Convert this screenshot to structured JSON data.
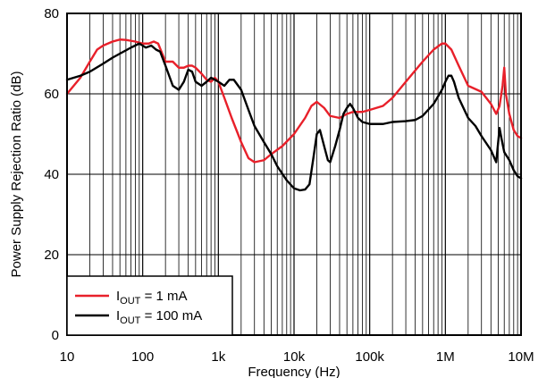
{
  "chart_data": {
    "type": "line",
    "xlabel": "Frequency (Hz)",
    "ylabel": "Power Supply Rejection Ratio (dB)",
    "x_scale": "log",
    "xlim": [
      10,
      10000000
    ],
    "ylim": [
      0,
      80
    ],
    "x_ticks": [
      {
        "value": 10,
        "label": "10"
      },
      {
        "value": 100,
        "label": "100"
      },
      {
        "value": 1000,
        "label": "1k"
      },
      {
        "value": 10000,
        "label": "10k"
      },
      {
        "value": 100000,
        "label": "100k"
      },
      {
        "value": 1000000,
        "label": "1M"
      },
      {
        "value": 10000000,
        "label": "10M"
      }
    ],
    "y_ticks": [
      {
        "value": 0,
        "label": "0"
      },
      {
        "value": 20,
        "label": "20"
      },
      {
        "value": 40,
        "label": "40"
      },
      {
        "value": 60,
        "label": "60"
      },
      {
        "value": 80,
        "label": "80"
      }
    ],
    "grid": true,
    "legend_position": "bottom-left",
    "series": [
      {
        "name_main": "I",
        "name_sub": "OUT",
        "name_rest": " = 1 mA",
        "color": "#e8202a",
        "points": [
          [
            10,
            60
          ],
          [
            15,
            64
          ],
          [
            20,
            68
          ],
          [
            25,
            71
          ],
          [
            30,
            72
          ],
          [
            40,
            73
          ],
          [
            50,
            73.5
          ],
          [
            60,
            73.4
          ],
          [
            80,
            73
          ],
          [
            100,
            72.5
          ],
          [
            120,
            72.5
          ],
          [
            140,
            73
          ],
          [
            160,
            72.5
          ],
          [
            200,
            68
          ],
          [
            250,
            68
          ],
          [
            300,
            66.5
          ],
          [
            350,
            66.5
          ],
          [
            400,
            67
          ],
          [
            450,
            67
          ],
          [
            500,
            66.5
          ],
          [
            600,
            65
          ],
          [
            700,
            63.5
          ],
          [
            800,
            63
          ],
          [
            900,
            64
          ],
          [
            1000,
            63
          ],
          [
            1200,
            59
          ],
          [
            1500,
            54
          ],
          [
            2000,
            48
          ],
          [
            2500,
            44
          ],
          [
            3000,
            43
          ],
          [
            4000,
            43.5
          ],
          [
            5000,
            45
          ],
          [
            7000,
            47
          ],
          [
            10000,
            50
          ],
          [
            14000,
            54
          ],
          [
            17000,
            57
          ],
          [
            20000,
            58
          ],
          [
            25000,
            56.5
          ],
          [
            30000,
            54.5
          ],
          [
            40000,
            54
          ],
          [
            50000,
            55
          ],
          [
            60000,
            55.5
          ],
          [
            80000,
            55.5
          ],
          [
            100000,
            56
          ],
          [
            150000,
            57
          ],
          [
            200000,
            59
          ],
          [
            300000,
            63
          ],
          [
            500000,
            68
          ],
          [
            700000,
            71
          ],
          [
            900000,
            72.5
          ],
          [
            1000000,
            72.5
          ],
          [
            1200000,
            71
          ],
          [
            1500000,
            67
          ],
          [
            2000000,
            62
          ],
          [
            3000000,
            60.5
          ],
          [
            4000000,
            57.5
          ],
          [
            4700000,
            55
          ],
          [
            5200000,
            57
          ],
          [
            5700000,
            62
          ],
          [
            6000000,
            66.5
          ],
          [
            6300000,
            60
          ],
          [
            7000000,
            55
          ],
          [
            8000000,
            51
          ],
          [
            9000000,
            49.5
          ],
          [
            10000000,
            49
          ]
        ]
      },
      {
        "name_main": "I",
        "name_sub": "OUT",
        "name_rest": " = 100 mA",
        "color": "#000000",
        "points": [
          [
            10,
            63.5
          ],
          [
            15,
            64.5
          ],
          [
            20,
            65.5
          ],
          [
            30,
            67.5
          ],
          [
            40,
            69
          ],
          [
            50,
            70
          ],
          [
            70,
            71.5
          ],
          [
            90,
            72.5
          ],
          [
            100,
            72
          ],
          [
            110,
            71.5
          ],
          [
            130,
            72
          ],
          [
            150,
            71
          ],
          [
            170,
            70.5
          ],
          [
            200,
            67
          ],
          [
            250,
            62
          ],
          [
            300,
            61
          ],
          [
            350,
            63
          ],
          [
            400,
            66
          ],
          [
            450,
            65.5
          ],
          [
            500,
            63
          ],
          [
            600,
            62
          ],
          [
            700,
            63
          ],
          [
            800,
            64
          ],
          [
            900,
            63.5
          ],
          [
            1000,
            63
          ],
          [
            1200,
            62
          ],
          [
            1400,
            63.5
          ],
          [
            1600,
            63.5
          ],
          [
            2000,
            61
          ],
          [
            2500,
            56
          ],
          [
            3000,
            52
          ],
          [
            4000,
            48
          ],
          [
            5000,
            45
          ],
          [
            6000,
            42
          ],
          [
            8000,
            38.5
          ],
          [
            10000,
            36.5
          ],
          [
            12000,
            36
          ],
          [
            14000,
            36.2
          ],
          [
            16000,
            37.5
          ],
          [
            18000,
            44
          ],
          [
            20000,
            50
          ],
          [
            22000,
            51
          ],
          [
            25000,
            47
          ],
          [
            28000,
            43.5
          ],
          [
            30000,
            43
          ],
          [
            35000,
            47
          ],
          [
            40000,
            51
          ],
          [
            45000,
            55
          ],
          [
            50000,
            56.5
          ],
          [
            55000,
            57.5
          ],
          [
            60000,
            56.5
          ],
          [
            70000,
            54
          ],
          [
            80000,
            53
          ],
          [
            100000,
            52.5
          ],
          [
            150000,
            52.5
          ],
          [
            200000,
            53
          ],
          [
            300000,
            53.2
          ],
          [
            400000,
            53.5
          ],
          [
            500000,
            54.5
          ],
          [
            700000,
            57.5
          ],
          [
            900000,
            61
          ],
          [
            1000000,
            63
          ],
          [
            1100000,
            64.5
          ],
          [
            1200000,
            64.5
          ],
          [
            1300000,
            63
          ],
          [
            1500000,
            59
          ],
          [
            2000000,
            54
          ],
          [
            2500000,
            52
          ],
          [
            3000000,
            49.5
          ],
          [
            4000000,
            46
          ],
          [
            4700000,
            43
          ],
          [
            5200000,
            51.5
          ],
          [
            5500000,
            49
          ],
          [
            6000000,
            45.5
          ],
          [
            7000000,
            43.5
          ],
          [
            8000000,
            41
          ],
          [
            9000000,
            39.5
          ],
          [
            10000000,
            39
          ]
        ]
      }
    ]
  }
}
